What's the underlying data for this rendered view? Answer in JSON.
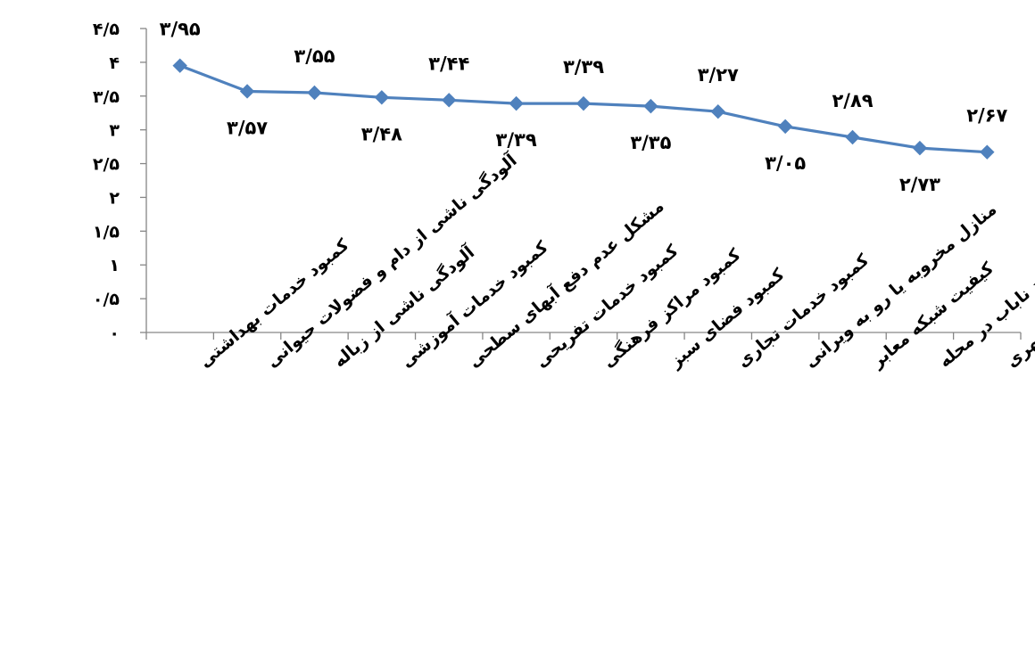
{
  "chart_data": {
    "type": "line",
    "categories": [
      "کمبود خدمات بهداشتی",
      "آلودگی ناشی از دام و فضولات حیوانی",
      "آلودگی ناشی از زباله",
      "کمبود خدمات آموزشی",
      "مشکل عدم دفع آبهای سطحی",
      "کمبود خدمات تفریحی",
      "کمبود مراکز فرهنگی",
      "کمبود فضای سبز",
      "کمبود خدمات تجاری",
      "منازل مخروبه یا رو به ویرانی",
      "کیفیت شبکه معابر",
      "وجود افراد ناباب در محله",
      "کمبود مبلمان و تجهیزات شهری"
    ],
    "series": [
      {
        "values": [
          3.95,
          3.57,
          3.55,
          3.48,
          3.44,
          3.39,
          3.39,
          3.35,
          3.27,
          3.05,
          2.89,
          2.73,
          2.67
        ],
        "color": "#4F81BD"
      }
    ],
    "data_labels": [
      "۳/۹۵",
      "۳/۵۷",
      "۳/۵۵",
      "۳/۴۸",
      "۳/۴۴",
      "۳/۳۹",
      "۳/۳۹",
      "۳/۳۵",
      "۳/۲۷",
      "۳/۰۵",
      "۲/۸۹",
      "۲/۷۳",
      "۲/۶۷"
    ],
    "y_tick_labels": [
      "۰",
      "۰/۵",
      "۱",
      "۱/۵",
      "۲",
      "۲/۵",
      "۳",
      "۳/۵",
      "۴",
      "۴/۵"
    ],
    "ylim": [
      0,
      4.5
    ],
    "y_step": 0.5,
    "marker": "diamond",
    "grid": false,
    "legend": "none",
    "title": "",
    "xlabel": "",
    "ylabel": ""
  }
}
